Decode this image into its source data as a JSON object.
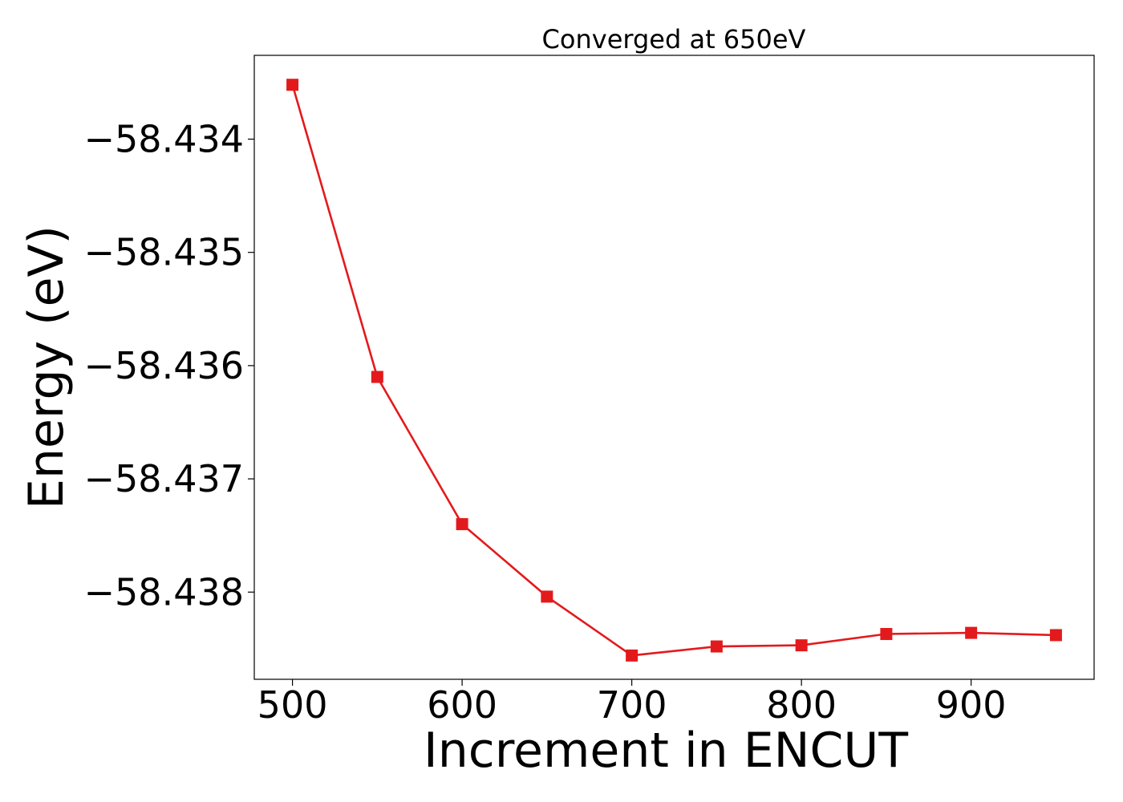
{
  "chart_data": {
    "type": "line",
    "title": "Converged at 650eV",
    "xlabel": "Increment in ENCUT",
    "ylabel": "Energy (eV)",
    "xlim": [
      477.5,
      972.5
    ],
    "ylim": [
      -58.43877,
      -58.43326
    ],
    "xticks": [
      500,
      600,
      700,
      800,
      900
    ],
    "xtick_labels": [
      "500",
      "600",
      "700",
      "800",
      "900"
    ],
    "yticks": [
      -58.434,
      -58.435,
      -58.436,
      -58.437,
      -58.438
    ],
    "ytick_labels": [
      "−58.434",
      "−58.435",
      "−58.436",
      "−58.437",
      "−58.438"
    ],
    "grid": false,
    "series": [
      {
        "x": [
          500,
          550,
          600,
          650,
          700,
          750,
          800,
          850,
          900,
          950
        ],
        "y": [
          -58.43352,
          -58.4361,
          -58.4374,
          -58.43804,
          -58.43856,
          -58.43848,
          -58.43847,
          -58.43837,
          -58.43836,
          -58.43838
        ],
        "color": "#e31a1c",
        "marker": "square"
      }
    ]
  }
}
